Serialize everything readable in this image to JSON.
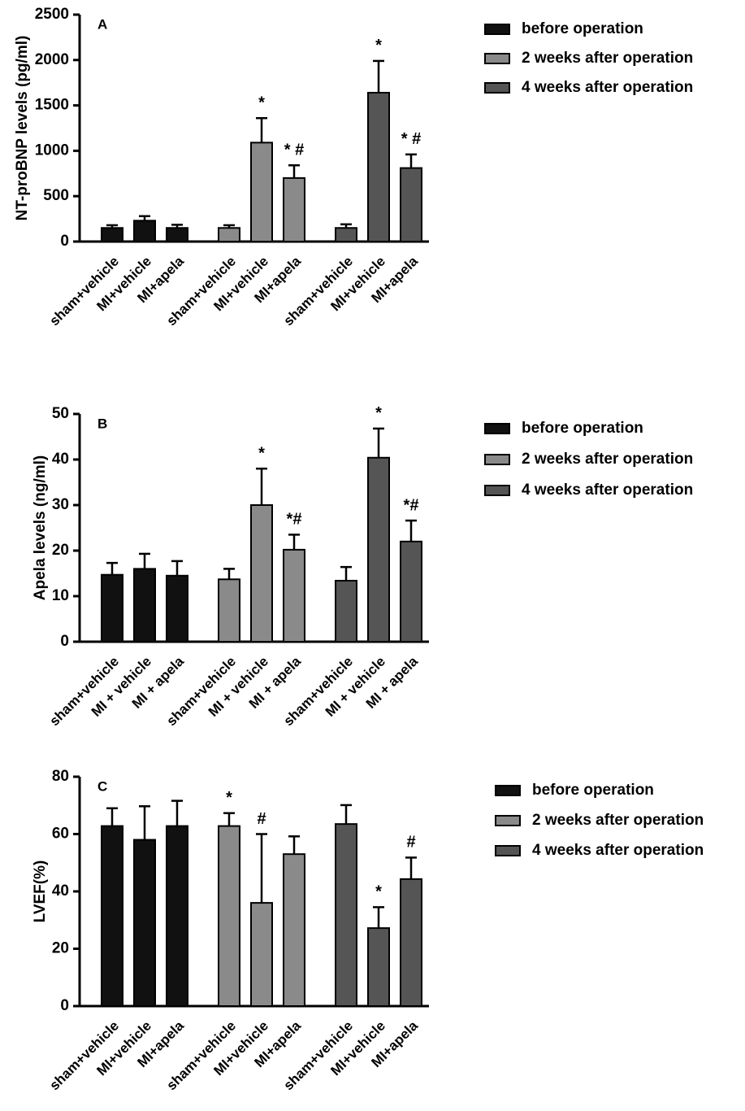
{
  "chart_data": [
    {
      "type": "bar",
      "panel": "A",
      "ylabel": "NT-proBNP levels (pg/ml)",
      "categories": [
        "sham+vehicle",
        "MI+vehicle",
        "MI+apela",
        "sham+vehicle",
        "MI+vehicle",
        "MI+apela",
        "sham+vehicle",
        "MI+vehicle",
        "MI+apela"
      ],
      "ylim": [
        0,
        2500
      ],
      "yticks": [
        0,
        500,
        1000,
        1500,
        2000,
        2500
      ],
      "series": [
        {
          "name": "before operation",
          "color": "#111111",
          "values": [
            150,
            230,
            150,
            null,
            null,
            null,
            null,
            null,
            null
          ],
          "errors": [
            30,
            50,
            35,
            null,
            null,
            null,
            null,
            null,
            null
          ]
        },
        {
          "name": "2 weeks after operation",
          "color": "#8a8a8a",
          "values": [
            null,
            null,
            null,
            150,
            1090,
            700,
            null,
            null,
            null
          ],
          "errors": [
            null,
            null,
            null,
            30,
            270,
            140,
            null,
            null,
            null
          ]
        },
        {
          "name": "4 weeks after operation",
          "color": "#555555",
          "values": [
            null,
            null,
            null,
            null,
            null,
            null,
            150,
            1640,
            810
          ],
          "errors": [
            null,
            null,
            null,
            null,
            null,
            null,
            40,
            350,
            150
          ]
        }
      ],
      "annotations": [
        null,
        null,
        null,
        null,
        "*",
        "* #",
        null,
        "*",
        "* #"
      ]
    },
    {
      "type": "bar",
      "panel": "B",
      "ylabel": "Apela levels (ng/ml)",
      "categories": [
        "sham+vehicle",
        "MI + vehicle",
        "MI + apela",
        "sham+vehicle",
        "MI + vehicle",
        "MI + apela",
        "sham+vehicle",
        "MI + vehicle",
        "MI + apela"
      ],
      "ylim": [
        0,
        50
      ],
      "yticks": [
        0,
        10,
        20,
        30,
        40,
        50
      ],
      "series": [
        {
          "name": "before operation",
          "color": "#111111",
          "values": [
            14.7,
            16,
            14.5,
            null,
            null,
            null,
            null,
            null,
            null
          ],
          "errors": [
            2.6,
            3.3,
            3.2,
            null,
            null,
            null,
            null,
            null,
            null
          ]
        },
        {
          "name": "2 weeks after operation",
          "color": "#8a8a8a",
          "values": [
            null,
            null,
            null,
            13.7,
            30,
            20.2,
            null,
            null,
            null
          ],
          "errors": [
            null,
            null,
            null,
            2.3,
            8,
            3.3,
            null,
            null,
            null
          ]
        },
        {
          "name": "4 weeks after operation",
          "color": "#555555",
          "values": [
            null,
            null,
            null,
            null,
            null,
            null,
            13.4,
            40.4,
            22
          ],
          "errors": [
            null,
            null,
            null,
            null,
            null,
            null,
            3,
            6.4,
            4.6
          ]
        }
      ],
      "annotations": [
        null,
        null,
        null,
        null,
        "*",
        "*#",
        null,
        "*",
        "*#"
      ]
    },
    {
      "type": "bar",
      "panel": "C",
      "ylabel": "LVEF(%)",
      "categories": [
        "sham+vehicle",
        "MI+vehicle",
        "MI+apela",
        "sham+vehicle",
        "MI+vehicle",
        "MI+apela",
        "sham+vehicle",
        "MI+vehicle",
        "MI+apela"
      ],
      "ylim": [
        0,
        80
      ],
      "yticks": [
        0,
        20,
        40,
        60,
        80
      ],
      "series": [
        {
          "name": "before operation",
          "color": "#111111",
          "values": [
            62.8,
            58,
            62.8,
            null,
            null,
            null,
            null,
            null,
            null
          ],
          "errors": [
            6.2,
            11.7,
            8.8,
            null,
            null,
            null,
            null,
            null,
            null
          ]
        },
        {
          "name": "2 weeks after operation",
          "color": "#8a8a8a",
          "values": [
            null,
            null,
            null,
            62.8,
            36,
            53,
            null,
            null,
            null
          ],
          "errors": [
            null,
            null,
            null,
            4.5,
            24,
            6.2,
            null,
            null,
            null
          ]
        },
        {
          "name": "4 weeks after operation",
          "color": "#555555",
          "values": [
            null,
            null,
            null,
            null,
            null,
            null,
            63.5,
            27.2,
            44.3
          ],
          "errors": [
            null,
            null,
            null,
            null,
            null,
            null,
            6.6,
            7.3,
            7.5
          ]
        }
      ],
      "annotations": [
        null,
        null,
        null,
        "*",
        "#",
        null,
        null,
        "*",
        "#"
      ]
    }
  ]
}
